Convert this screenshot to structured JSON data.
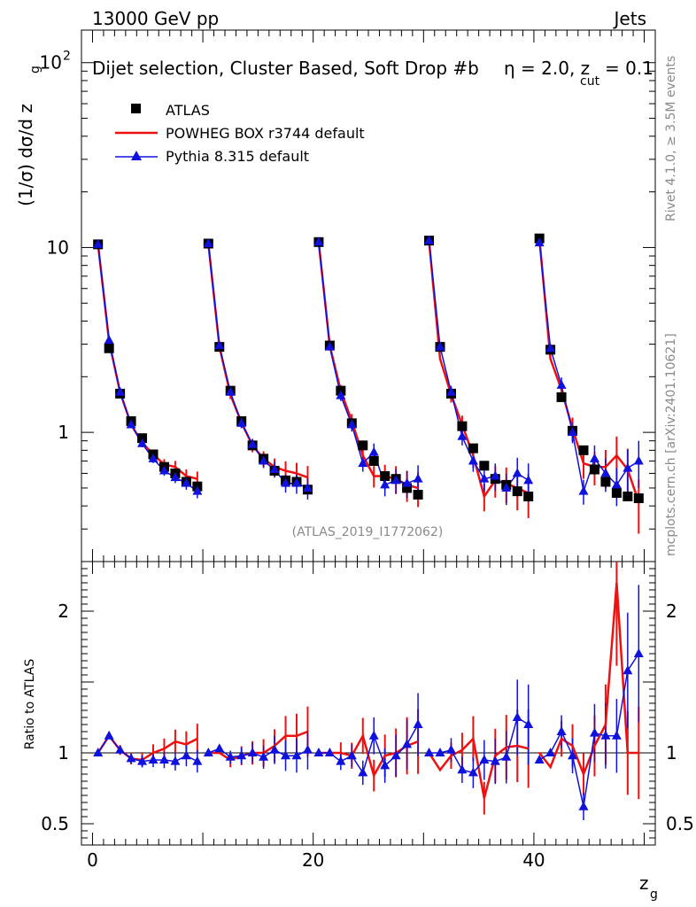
{
  "header": {
    "left": "13000 GeV pp",
    "right": "Jets",
    "title": "Dijet selection, Cluster Based, Soft Drop #b",
    "eta": "η = 2.0, z",
    "cut_sub": "cut",
    "cut_val": " = 0.1"
  },
  "side": {
    "rivet": "Rivet 4.1.0, ≥ 3.5M events",
    "mcplots": "mcplots.cern.ch [arXiv:2401.10621]"
  },
  "watermark": "(ATLAS_2019_I1772062)",
  "colors": {
    "data": "#000000",
    "powheg": "#ee1111",
    "pythia": "#1111dd"
  },
  "chart_data": [
    {
      "type": "line",
      "panel": "main",
      "ylabel_parts": [
        "(1/σ) dσ/d z",
        "g"
      ],
      "yscale": "log",
      "ylim": [
        0.2,
        150
      ],
      "xlim": [
        -1,
        51
      ],
      "ytick_labels": [
        {
          "v": 1,
          "t": "1"
        },
        {
          "v": 10,
          "t": "10"
        },
        {
          "v": 100,
          "t": "10",
          "sup": "2"
        }
      ],
      "legend": [
        "ATLAS",
        "POWHEG BOX r3744 default",
        "Pythia 8.315 default"
      ],
      "x": [
        0.5,
        1.5,
        2.5,
        3.5,
        4.5,
        5.5,
        6.5,
        7.5,
        8.5,
        9.5,
        10.5,
        11.5,
        12.5,
        13.5,
        14.5,
        15.5,
        16.5,
        17.5,
        18.5,
        19.5,
        20.5,
        21.5,
        22.5,
        23.5,
        24.5,
        25.5,
        26.5,
        27.5,
        28.5,
        29.5,
        30.5,
        31.5,
        32.5,
        33.5,
        34.5,
        35.5,
        36.5,
        37.5,
        38.5,
        39.5,
        40.5,
        41.5,
        42.5,
        43.5,
        44.5,
        45.5,
        46.5,
        47.5,
        48.5,
        49.5
      ],
      "series": [
        {
          "name": "ATLAS",
          "values": [
            10.4,
            2.85,
            1.62,
            1.15,
            0.93,
            0.76,
            0.65,
            0.6,
            0.54,
            0.51,
            10.5,
            2.9,
            1.68,
            1.15,
            0.85,
            0.72,
            0.62,
            0.55,
            0.54,
            0.49,
            10.7,
            2.95,
            1.68,
            1.12,
            0.85,
            0.7,
            0.58,
            0.56,
            0.5,
            0.46,
            10.9,
            2.9,
            1.62,
            1.08,
            0.82,
            0.66,
            0.56,
            0.52,
            0.48,
            0.45,
            11.2,
            2.8,
            1.55,
            1.02,
            0.8,
            0.63,
            0.54,
            0.47,
            0.45,
            0.44
          ]
        },
        {
          "name": "POWHEG BOX r3744 default",
          "values": [
            10.4,
            3.1,
            1.65,
            1.1,
            0.88,
            0.76,
            0.67,
            0.65,
            0.58,
            0.56,
            10.5,
            2.9,
            1.6,
            1.13,
            0.85,
            0.72,
            0.65,
            0.62,
            0.6,
            0.57,
            10.7,
            2.95,
            1.68,
            1.15,
            0.75,
            0.58,
            0.58,
            0.56,
            0.52,
            0.5,
            10.9,
            2.5,
            1.6,
            1.1,
            0.75,
            0.45,
            0.55,
            0.53,
            0.5,
            0.47,
            11.2,
            2.5,
            1.7,
            1.05,
            0.68,
            0.65,
            0.65,
            0.75,
            0.63,
            0.42
          ]
        },
        {
          "name": "Pythia 8.315 default",
          "values": [
            10.4,
            3.15,
            1.65,
            1.1,
            0.87,
            0.72,
            0.62,
            0.57,
            0.53,
            0.48,
            10.5,
            2.95,
            1.65,
            1.12,
            0.86,
            0.7,
            0.63,
            0.53,
            0.53,
            0.5,
            10.7,
            2.9,
            1.58,
            1.1,
            0.68,
            0.78,
            0.52,
            0.55,
            0.53,
            0.56,
            10.9,
            2.9,
            1.65,
            0.95,
            0.7,
            0.56,
            0.58,
            0.5,
            0.6,
            0.55,
            10.6,
            2.85,
            1.8,
            1.0,
            0.48,
            0.72,
            0.6,
            0.52,
            0.64,
            0.7
          ]
        }
      ]
    },
    {
      "type": "line",
      "panel": "ratio",
      "ylabel": "Ratio to ATLAS",
      "xlabel": "z",
      "xlabel_sub": "g",
      "ylim": [
        0.35,
        2.35
      ],
      "xlim": [
        -1,
        51
      ],
      "ytick_labels": [
        {
          "v": 0.5,
          "t": "0.5"
        },
        {
          "v": 1,
          "t": "1"
        },
        {
          "v": 2,
          "t": "2"
        }
      ],
      "xtick_labels": [
        {
          "v": 0,
          "t": "0"
        },
        {
          "v": 20,
          "t": "20"
        },
        {
          "v": 40,
          "t": "40"
        }
      ],
      "series": [
        {
          "name": "POWHEG BOX r3744 default",
          "values": [
            1.0,
            1.12,
            1.02,
            0.96,
            0.95,
            1.0,
            1.03,
            1.08,
            1.06,
            1.1,
            1.0,
            1.0,
            0.95,
            0.98,
            1.0,
            1.0,
            1.05,
            1.12,
            1.12,
            1.15,
            1.0,
            1.0,
            1.0,
            0.98,
            1.12,
            0.84,
            0.98,
            1.0,
            1.05,
            1.08,
            1.0,
            0.88,
            0.98,
            1.02,
            1.1,
            0.68,
            0.98,
            1.04,
            1.05,
            1.03,
            1.0,
            0.9,
            1.1,
            1.05,
            0.85,
            1.05,
            1.2,
            2.2,
            1.0,
            1.0
          ]
        },
        {
          "name": "Pythia 8.315 default",
          "values": [
            1.0,
            1.12,
            1.02,
            0.96,
            0.94,
            0.95,
            0.95,
            0.94,
            0.98,
            0.94,
            1.0,
            1.03,
            0.97,
            0.98,
            1.0,
            0.97,
            1.02,
            0.98,
            0.98,
            1.02,
            1.0,
            1.0,
            0.94,
            0.98,
            0.86,
            1.12,
            0.91,
            0.98,
            1.06,
            1.2,
            1.0,
            1.0,
            1.02,
            0.88,
            0.86,
            0.95,
            0.94,
            0.97,
            1.25,
            1.2,
            0.95,
            1.0,
            1.15,
            0.98,
            0.62,
            1.14,
            1.12,
            1.12,
            1.58,
            1.7
          ]
        }
      ]
    }
  ]
}
